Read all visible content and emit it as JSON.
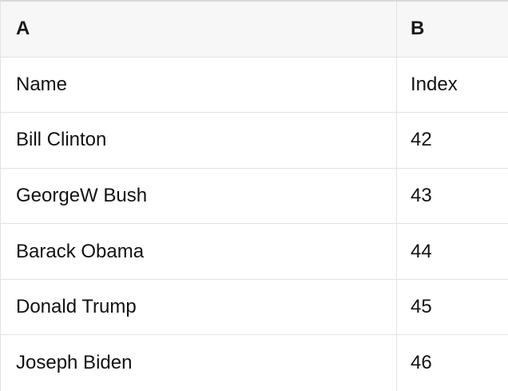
{
  "table": {
    "kind": "spreadsheet-preview",
    "columns": [
      {
        "key": "A",
        "label": "A"
      },
      {
        "key": "B",
        "label": "B"
      }
    ],
    "rows": [
      [
        "Name",
        "Index"
      ],
      [
        "Bill Clinton",
        "42"
      ],
      [
        "GeorgeW Bush",
        "43"
      ],
      [
        "Barack Obama",
        "44"
      ],
      [
        "Donald Trump",
        "45"
      ],
      [
        "Joseph Biden",
        "46"
      ]
    ],
    "colors": {
      "header_bg": "#f7f7f7",
      "row_bg": "#ffffff",
      "border": "#e2e2e2",
      "top_border": "#d9d9d9",
      "text": "#121212"
    }
  }
}
